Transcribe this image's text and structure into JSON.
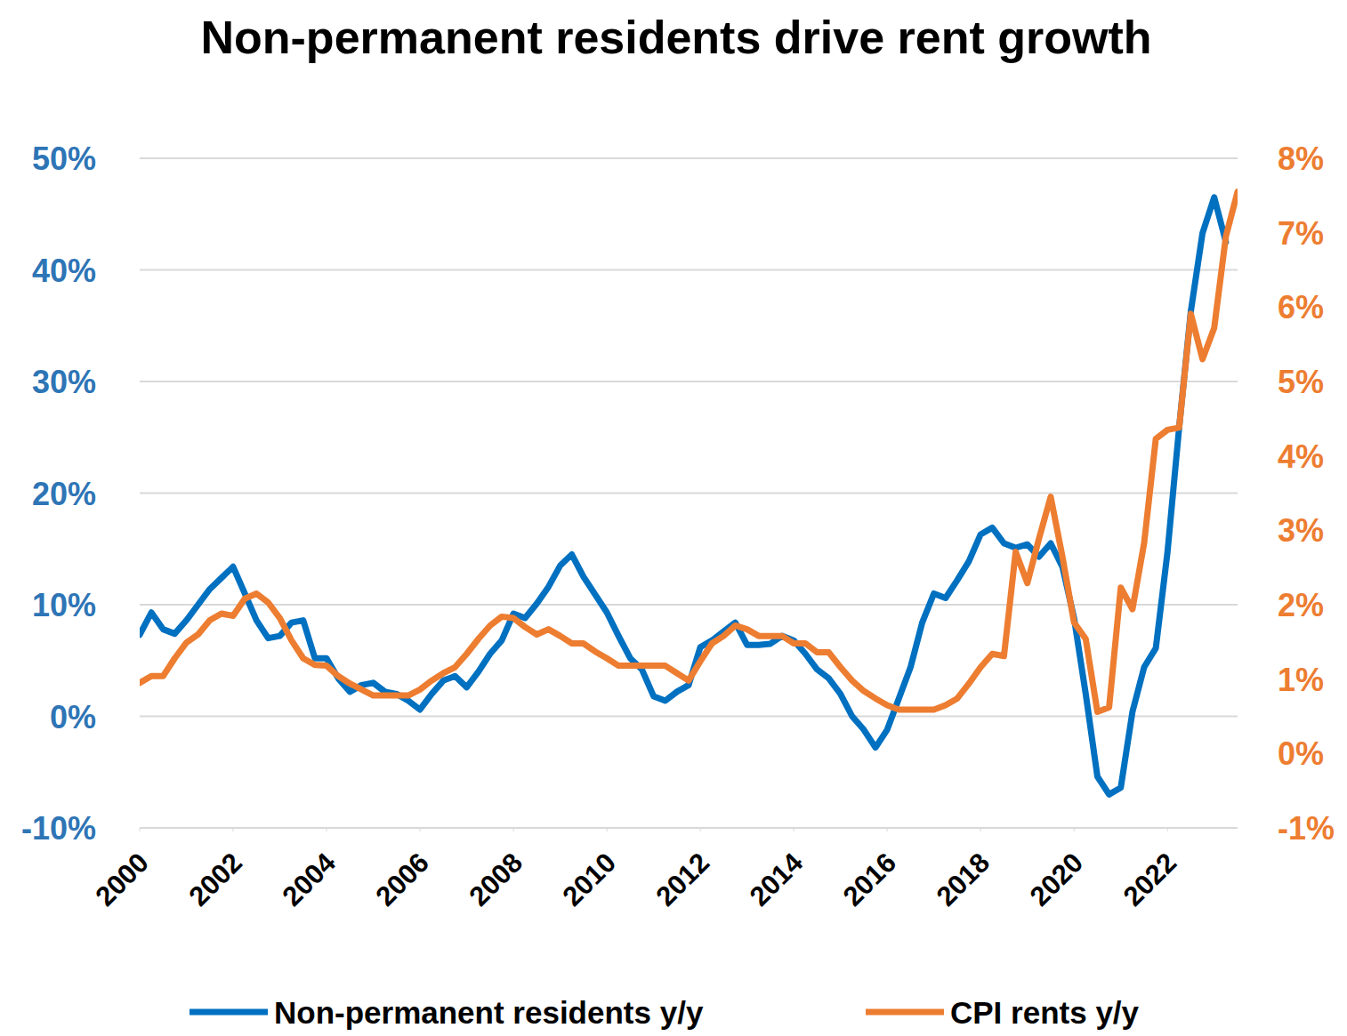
{
  "chart_data": {
    "type": "line",
    "title": "Non-permanent residents drive rent growth",
    "x": [
      2000,
      2000.25,
      2000.5,
      2000.75,
      2001,
      2001.25,
      2001.5,
      2001.75,
      2002,
      2002.25,
      2002.5,
      2002.75,
      2003,
      2003.25,
      2003.5,
      2003.75,
      2004,
      2004.25,
      2004.5,
      2004.75,
      2005,
      2005.25,
      2005.5,
      2005.75,
      2006,
      2006.25,
      2006.5,
      2006.75,
      2007,
      2007.25,
      2007.5,
      2007.75,
      2008,
      2008.25,
      2008.5,
      2008.75,
      2009,
      2009.25,
      2009.5,
      2009.75,
      2010,
      2010.25,
      2010.5,
      2010.75,
      2011,
      2011.25,
      2011.5,
      2011.75,
      2012,
      2012.25,
      2012.5,
      2012.75,
      2013,
      2013.25,
      2013.5,
      2013.75,
      2014,
      2014.25,
      2014.5,
      2014.75,
      2015,
      2015.25,
      2015.5,
      2015.75,
      2016,
      2016.25,
      2016.5,
      2016.75,
      2017,
      2017.25,
      2017.5,
      2017.75,
      2018,
      2018.25,
      2018.5,
      2018.75,
      2019,
      2019.25,
      2019.5,
      2019.75,
      2020,
      2020.25,
      2020.5,
      2020.75,
      2021,
      2021.25,
      2021.5,
      2021.75,
      2022,
      2022.25,
      2022.5,
      2022.75,
      2023,
      2023.25,
      2023.5
    ],
    "series": [
      {
        "name": "Non-permanent residents y/y",
        "color": "#0070c0",
        "axis": "y",
        "values": [
          7.3,
          9.3,
          7.8,
          7.4,
          8.6,
          10.0,
          11.4,
          12.4,
          13.4,
          11.0,
          8.6,
          7.0,
          7.2,
          8.4,
          8.6,
          5.2,
          5.2,
          3.4,
          2.2,
          2.8,
          3.0,
          2.2,
          2.0,
          1.4,
          0.6,
          2.0,
          3.2,
          3.6,
          2.6,
          4.0,
          5.6,
          6.8,
          9.2,
          8.8,
          10.1,
          11.6,
          13.5,
          14.5,
          12.5,
          10.9,
          9.3,
          7.2,
          5.2,
          4.2,
          1.8,
          1.4,
          2.2,
          2.8,
          6.2,
          6.8,
          7.6,
          8.4,
          6.4,
          6.4,
          6.5,
          7.2,
          6.8,
          5.6,
          4.2,
          3.4,
          2.0,
          0.0,
          -1.2,
          -2.8,
          -1.2,
          1.6,
          4.4,
          8.4,
          11.0,
          10.6,
          12.2,
          13.9,
          16.3,
          16.9,
          15.5,
          15.1,
          15.4,
          14.3,
          15.5,
          13.4,
          8.8,
          2.0,
          -5.4,
          -7.0,
          -6.4,
          0.4,
          4.4,
          6.1,
          14.7,
          25.9,
          36.3,
          43.3,
          46.5,
          42.5,
          null
        ]
      },
      {
        "name": "CPI rents y/y",
        "color": "#ed7d31",
        "axis": "y2",
        "values": [
          0.95,
          1.04,
          1.04,
          1.28,
          1.49,
          1.6,
          1.79,
          1.88,
          1.85,
          2.08,
          2.15,
          2.03,
          1.82,
          1.52,
          1.28,
          1.19,
          1.18,
          1.04,
          0.94,
          0.86,
          0.78,
          0.78,
          0.78,
          0.78,
          0.86,
          0.98,
          1.08,
          1.16,
          1.34,
          1.54,
          1.72,
          1.84,
          1.82,
          1.7,
          1.6,
          1.67,
          1.58,
          1.48,
          1.48,
          1.37,
          1.28,
          1.18,
          1.18,
          1.18,
          1.18,
          1.18,
          1.08,
          0.98,
          1.24,
          1.48,
          1.58,
          1.72,
          1.67,
          1.58,
          1.58,
          1.58,
          1.48,
          1.48,
          1.36,
          1.36,
          1.16,
          0.98,
          0.84,
          0.74,
          0.65,
          0.59,
          0.59,
          0.59,
          0.59,
          0.65,
          0.74,
          0.94,
          1.16,
          1.34,
          1.31,
          2.71,
          2.29,
          2.89,
          3.45,
          2.65,
          1.76,
          1.54,
          0.56,
          0.62,
          2.23,
          1.94,
          2.83,
          4.23,
          4.35,
          4.38,
          5.91,
          5.3,
          5.72,
          6.95,
          7.55
        ]
      }
    ],
    "xlim": [
      2000,
      2023.5
    ],
    "xticks": [
      2000,
      2002,
      2004,
      2006,
      2008,
      2010,
      2012,
      2014,
      2016,
      2018,
      2020,
      2022
    ],
    "ylim": [
      -10,
      50
    ],
    "yticks": [
      {
        "value": -10,
        "label": "-10%"
      },
      {
        "value": 0,
        "label": "0%"
      },
      {
        "value": 10,
        "label": "10%"
      },
      {
        "value": 20,
        "label": "20%"
      },
      {
        "value": 30,
        "label": "30%"
      },
      {
        "value": 40,
        "label": "40%"
      },
      {
        "value": 50,
        "label": "50%"
      }
    ],
    "y2lim": [
      -1,
      8
    ],
    "y2ticks": [
      {
        "value": -1,
        "label": "-1%"
      },
      {
        "value": 0,
        "label": "0%"
      },
      {
        "value": 1,
        "label": "1%"
      },
      {
        "value": 2,
        "label": "2%"
      },
      {
        "value": 3,
        "label": "3%"
      },
      {
        "value": 4,
        "label": "4%"
      },
      {
        "value": 5,
        "label": "5%"
      },
      {
        "value": 6,
        "label": "6%"
      },
      {
        "value": 7,
        "label": "7%"
      },
      {
        "value": 8,
        "label": "8%"
      }
    ],
    "grid": true,
    "legend": "bottom"
  }
}
